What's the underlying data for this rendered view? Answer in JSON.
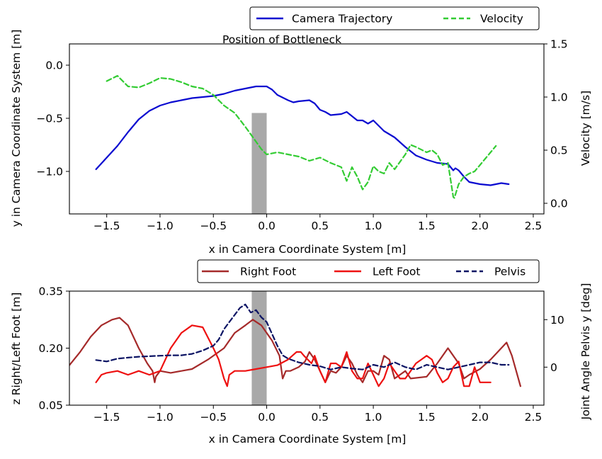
{
  "chart_data": [
    {
      "type": "line",
      "annotation": "Position of Bottleneck",
      "xlabel": "x in Camera Coordinate System [m]",
      "ylabel": "y in Camera Coordinate System [m]",
      "y2label": "Velocity [m/s]",
      "xlim": [
        -1.85,
        2.6
      ],
      "ylim": [
        -1.4,
        0.2
      ],
      "y2lim": [
        -0.1,
        1.5
      ],
      "xticks": [
        "−1.5",
        "−1.0",
        "−0.5",
        "0.0",
        "0.5",
        "1.0",
        "1.5",
        "2.0",
        "2.5"
      ],
      "xtick_values": [
        -1.5,
        -1.0,
        -0.5,
        0.0,
        0.5,
        1.0,
        1.5,
        2.0,
        2.5
      ],
      "yticks": [
        "0.0",
        "−0.5",
        "−1.0"
      ],
      "ytick_values": [
        0.0,
        -0.5,
        -1.0
      ],
      "y2ticks": [
        "1.5",
        "1.0",
        "0.5",
        "0.0"
      ],
      "y2tick_values": [
        1.5,
        1.0,
        0.5,
        0.0
      ],
      "bottleneck": {
        "x_range": [
          -0.14,
          0.0
        ],
        "y_range": [
          -1.4,
          -0.45
        ],
        "color": "#a9a9a9"
      },
      "legend": {
        "placement": "top-right, above plot"
      },
      "series": [
        {
          "name": "Camera Trajectory",
          "axis": "left",
          "color": "#0a0ad0",
          "style": "solid",
          "x": [
            -1.6,
            -1.5,
            -1.4,
            -1.3,
            -1.2,
            -1.1,
            -1.0,
            -0.9,
            -0.8,
            -0.7,
            -0.6,
            -0.5,
            -0.4,
            -0.3,
            -0.2,
            -0.1,
            0.0,
            0.05,
            0.1,
            0.2,
            0.25,
            0.3,
            0.4,
            0.45,
            0.5,
            0.55,
            0.6,
            0.7,
            0.75,
            0.8,
            0.85,
            0.9,
            0.95,
            1.0,
            1.1,
            1.2,
            1.3,
            1.4,
            1.5,
            1.6,
            1.7,
            1.75,
            1.77,
            1.8,
            1.85,
            1.9,
            2.0,
            2.1,
            2.2,
            2.27
          ],
          "y": [
            -0.98,
            -0.87,
            -0.76,
            -0.63,
            -0.51,
            -0.43,
            -0.38,
            -0.35,
            -0.33,
            -0.31,
            -0.3,
            -0.29,
            -0.27,
            -0.24,
            -0.22,
            -0.2,
            -0.2,
            -0.23,
            -0.28,
            -0.33,
            -0.35,
            -0.34,
            -0.33,
            -0.36,
            -0.42,
            -0.44,
            -0.47,
            -0.46,
            -0.44,
            -0.48,
            -0.52,
            -0.52,
            -0.55,
            -0.52,
            -0.62,
            -0.68,
            -0.77,
            -0.85,
            -0.89,
            -0.92,
            -0.93,
            -0.99,
            -0.97,
            -0.99,
            -1.05,
            -1.1,
            -1.12,
            -1.13,
            -1.11,
            -1.12
          ]
        },
        {
          "name": "Velocity",
          "axis": "right",
          "color": "#33cc33",
          "style": "dashed",
          "x": [
            -1.5,
            -1.4,
            -1.3,
            -1.2,
            -1.1,
            -1.0,
            -0.9,
            -0.8,
            -0.7,
            -0.6,
            -0.5,
            -0.45,
            -0.4,
            -0.3,
            -0.2,
            -0.1,
            -0.05,
            0.0,
            0.1,
            0.2,
            0.3,
            0.4,
            0.5,
            0.6,
            0.7,
            0.75,
            0.8,
            0.85,
            0.9,
            0.95,
            1.0,
            1.05,
            1.1,
            1.15,
            1.2,
            1.3,
            1.35,
            1.4,
            1.5,
            1.55,
            1.6,
            1.65,
            1.7,
            1.75,
            1.76,
            1.8,
            1.85,
            1.9,
            1.95,
            2.0,
            2.05,
            2.1,
            2.15
          ],
          "y": [
            1.15,
            1.2,
            1.1,
            1.09,
            1.13,
            1.18,
            1.17,
            1.14,
            1.1,
            1.08,
            1.02,
            0.97,
            0.92,
            0.85,
            0.72,
            0.58,
            0.51,
            0.46,
            0.48,
            0.46,
            0.44,
            0.4,
            0.43,
            0.38,
            0.34,
            0.21,
            0.34,
            0.25,
            0.13,
            0.2,
            0.35,
            0.3,
            0.28,
            0.38,
            0.32,
            0.46,
            0.55,
            0.53,
            0.48,
            0.5,
            0.46,
            0.36,
            0.38,
            0.06,
            0.05,
            0.18,
            0.25,
            0.28,
            0.3,
            0.36,
            0.42,
            0.48,
            0.54
          ]
        }
      ]
    },
    {
      "type": "line",
      "xlabel": "x in Camera Coordinate System [m]",
      "ylabel": "z Right/Left Foot [m]",
      "y2label": "Joint Angle Pelvis y [deg]",
      "xlim": [
        -1.85,
        2.6
      ],
      "ylim": [
        0.05,
        0.35
      ],
      "y2lim": [
        -8,
        16
      ],
      "xticks": [
        "−1.5",
        "−1.0",
        "−0.5",
        "0.0",
        "0.5",
        "1.0",
        "1.5",
        "2.0",
        "2.5"
      ],
      "xtick_values": [
        -1.5,
        -1.0,
        -0.5,
        0.0,
        0.5,
        1.0,
        1.5,
        2.0,
        2.5
      ],
      "yticks": [
        "0.35",
        "0.20",
        "0.05"
      ],
      "ytick_values": [
        0.35,
        0.2,
        0.05
      ],
      "y2ticks": [
        "10",
        "0"
      ],
      "y2tick_values": [
        10,
        0
      ],
      "bottleneck": {
        "x_range": [
          -0.14,
          0.0
        ],
        "y_range": [
          0.05,
          0.35
        ],
        "color": "#a9a9a9"
      },
      "legend": {
        "placement": "top-right, above plot"
      },
      "series": [
        {
          "name": "Right Foot",
          "axis": "left",
          "color": "#a52a2a",
          "style": "solid",
          "x": [
            -1.85,
            -1.75,
            -1.65,
            -1.55,
            -1.45,
            -1.38,
            -1.3,
            -1.2,
            -1.12,
            -1.07,
            -1.05,
            -1.04,
            -1.0,
            -0.9,
            -0.7,
            -0.55,
            -0.4,
            -0.3,
            -0.2,
            -0.13,
            -0.05,
            0.05,
            0.12,
            0.15,
            0.18,
            0.22,
            0.3,
            0.36,
            0.4,
            0.45,
            0.5,
            0.55,
            0.6,
            0.65,
            0.7,
            0.75,
            0.8,
            0.85,
            0.9,
            0.95,
            1.0,
            1.05,
            1.1,
            1.15,
            1.2,
            1.25,
            1.3,
            1.35,
            1.5,
            1.6,
            1.7,
            1.8,
            1.85,
            1.9,
            2.0,
            2.1,
            2.2,
            2.25,
            2.3,
            2.38
          ],
          "y": [
            0.155,
            0.19,
            0.23,
            0.26,
            0.275,
            0.28,
            0.26,
            0.2,
            0.16,
            0.14,
            0.11,
            0.125,
            0.14,
            0.135,
            0.145,
            0.17,
            0.2,
            0.24,
            0.26,
            0.275,
            0.26,
            0.22,
            0.18,
            0.12,
            0.14,
            0.14,
            0.15,
            0.165,
            0.19,
            0.17,
            0.14,
            0.11,
            0.14,
            0.135,
            0.15,
            0.18,
            0.16,
            0.13,
            0.11,
            0.14,
            0.14,
            0.13,
            0.18,
            0.17,
            0.12,
            0.13,
            0.14,
            0.12,
            0.125,
            0.16,
            0.2,
            0.16,
            0.12,
            0.13,
            0.145,
            0.17,
            0.2,
            0.215,
            0.18,
            0.1
          ]
        },
        {
          "name": "Left Foot",
          "axis": "left",
          "color": "#ee1111",
          "style": "solid",
          "x": [
            -1.6,
            -1.55,
            -1.5,
            -1.4,
            -1.3,
            -1.2,
            -1.1,
            -1.0,
            -0.9,
            -0.8,
            -0.7,
            -0.6,
            -0.5,
            -0.45,
            -0.4,
            -0.37,
            -0.35,
            -0.3,
            -0.2,
            -0.1,
            0.0,
            0.1,
            0.2,
            0.28,
            0.32,
            0.35,
            0.42,
            0.45,
            0.5,
            0.55,
            0.6,
            0.65,
            0.7,
            0.75,
            0.8,
            0.85,
            0.9,
            0.95,
            1.0,
            1.05,
            1.1,
            1.15,
            1.2,
            1.25,
            1.3,
            1.35,
            1.4,
            1.45,
            1.5,
            1.55,
            1.6,
            1.65,
            1.7,
            1.75,
            1.8,
            1.85,
            1.9,
            1.95,
            2.0,
            2.05,
            2.1
          ],
          "y": [
            0.11,
            0.13,
            0.135,
            0.14,
            0.13,
            0.14,
            0.13,
            0.14,
            0.2,
            0.24,
            0.26,
            0.255,
            0.2,
            0.17,
            0.12,
            0.1,
            0.13,
            0.14,
            0.14,
            0.145,
            0.15,
            0.155,
            0.17,
            0.19,
            0.19,
            0.18,
            0.16,
            0.18,
            0.14,
            0.11,
            0.16,
            0.16,
            0.15,
            0.19,
            0.14,
            0.12,
            0.12,
            0.16,
            0.13,
            0.1,
            0.12,
            0.16,
            0.14,
            0.12,
            0.12,
            0.14,
            0.16,
            0.17,
            0.18,
            0.17,
            0.135,
            0.11,
            0.12,
            0.15,
            0.165,
            0.1,
            0.1,
            0.15,
            0.11,
            0.11,
            0.11
          ]
        },
        {
          "name": "Pelvis",
          "axis": "right",
          "color": "#0c1464",
          "style": "dashed",
          "x": [
            -1.6,
            -1.5,
            -1.4,
            -1.3,
            -1.2,
            -1.1,
            -1.0,
            -0.9,
            -0.8,
            -0.7,
            -0.6,
            -0.5,
            -0.45,
            -0.4,
            -0.35,
            -0.3,
            -0.25,
            -0.2,
            -0.15,
            -0.1,
            -0.05,
            0.0,
            0.05,
            0.1,
            0.15,
            0.2,
            0.3,
            0.4,
            0.5,
            0.6,
            0.7,
            0.8,
            0.9,
            1.0,
            1.1,
            1.2,
            1.3,
            1.4,
            1.5,
            1.6,
            1.7,
            1.8,
            1.9,
            2.0,
            2.1,
            2.2,
            2.27
          ],
          "y": [
            1.5,
            1.2,
            1.8,
            2.0,
            2.2,
            2.3,
            2.4,
            2.5,
            2.5,
            2.8,
            3.5,
            4.5,
            5.8,
            8.0,
            9.5,
            11.0,
            12.5,
            13.2,
            11.5,
            12.0,
            10.5,
            9.5,
            7.0,
            4.5,
            2.5,
            1.8,
            1.0,
            0.5,
            0.2,
            -0.5,
            0.0,
            -0.3,
            -0.5,
            0.5,
            0.0,
            1.0,
            0.0,
            -0.5,
            0.5,
            0.0,
            -0.5,
            0.0,
            0.5,
            1.0,
            1.0,
            0.5,
            0.5
          ]
        }
      ]
    }
  ]
}
